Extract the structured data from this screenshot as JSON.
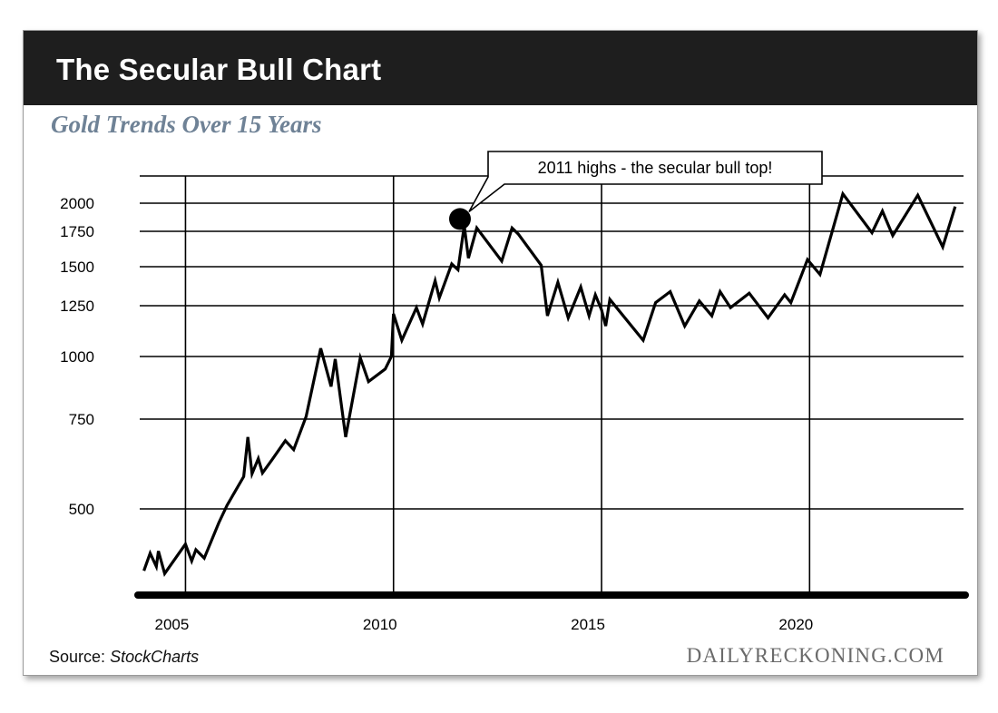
{
  "header": {
    "title": "The Secular Bull Chart",
    "subtitle": "Gold Trends Over 15 Years"
  },
  "footer": {
    "source_label": "Source:",
    "source_name": "StockCharts",
    "brand": "DAILYRECKONING.COM"
  },
  "colors": {
    "title_bar": "#1e1e1e",
    "subtitle": "#6f8296",
    "line": "#000000"
  },
  "chart_data": {
    "type": "line",
    "title": "The Secular Bull Chart",
    "subtitle": "Gold Trends Over 15 Years",
    "xlabel": "",
    "ylabel": "",
    "x_ticks": [
      2005,
      2010,
      2015,
      2020
    ],
    "y_ticks": [
      500,
      750,
      1000,
      1250,
      1500,
      1750,
      2000
    ],
    "y_scale": "nonlinear (compressed at top, log-like)",
    "xlim": [
      2003.9,
      2023.7
    ],
    "grid": true,
    "annotation": {
      "text": "2011 highs - the secular bull top!",
      "x": 2011.75,
      "y": 1900
    },
    "series": [
      {
        "values": [
          [
            2004.0,
            412
          ],
          [
            2004.15,
            437
          ],
          [
            2004.3,
            418
          ],
          [
            2004.35,
            440
          ],
          [
            2004.5,
            408
          ],
          [
            2005.0,
            450
          ],
          [
            2005.15,
            426
          ],
          [
            2005.25,
            442
          ],
          [
            2005.45,
            430
          ],
          [
            2005.8,
            480
          ],
          [
            2006.0,
            510
          ],
          [
            2006.4,
            590
          ],
          [
            2006.5,
            700
          ],
          [
            2006.6,
            598
          ],
          [
            2006.75,
            640
          ],
          [
            2006.85,
            600
          ],
          [
            2007.1,
            640
          ],
          [
            2007.4,
            690
          ],
          [
            2007.6,
            665
          ],
          [
            2007.9,
            760
          ],
          [
            2008.25,
            1040
          ],
          [
            2008.5,
            880
          ],
          [
            2008.6,
            990
          ],
          [
            2008.85,
            700
          ],
          [
            2009.2,
            995
          ],
          [
            2009.4,
            900
          ],
          [
            2009.8,
            950
          ],
          [
            2009.95,
            1000
          ],
          [
            2010.0,
            1210
          ],
          [
            2010.2,
            1080
          ],
          [
            2010.55,
            1240
          ],
          [
            2010.7,
            1160
          ],
          [
            2011.0,
            1410
          ],
          [
            2011.1,
            1300
          ],
          [
            2011.4,
            1520
          ],
          [
            2011.55,
            1480
          ],
          [
            2011.7,
            1800
          ],
          [
            2011.8,
            1560
          ],
          [
            2012.0,
            1780
          ],
          [
            2012.6,
            1540
          ],
          [
            2012.85,
            1780
          ],
          [
            2013.0,
            1730
          ],
          [
            2013.55,
            1510
          ],
          [
            2013.7,
            1200
          ],
          [
            2013.95,
            1400
          ],
          [
            2014.2,
            1190
          ],
          [
            2014.5,
            1370
          ],
          [
            2014.7,
            1200
          ],
          [
            2014.85,
            1320
          ],
          [
            2015.0,
            1230
          ],
          [
            2015.1,
            1150
          ],
          [
            2015.2,
            1290
          ],
          [
            2016.0,
            1080
          ],
          [
            2016.3,
            1270
          ],
          [
            2016.65,
            1340
          ],
          [
            2017.0,
            1150
          ],
          [
            2017.35,
            1280
          ],
          [
            2017.65,
            1200
          ],
          [
            2017.85,
            1340
          ],
          [
            2018.1,
            1240
          ],
          [
            2018.55,
            1330
          ],
          [
            2019.0,
            1190
          ],
          [
            2019.4,
            1320
          ],
          [
            2019.55,
            1270
          ],
          [
            2019.95,
            1550
          ],
          [
            2020.25,
            1450
          ],
          [
            2020.8,
            2070
          ],
          [
            2021.5,
            1740
          ],
          [
            2021.75,
            1930
          ],
          [
            2022.0,
            1720
          ],
          [
            2022.6,
            2060
          ],
          [
            2023.2,
            1640
          ],
          [
            2023.5,
            1970
          ]
        ]
      }
    ]
  }
}
